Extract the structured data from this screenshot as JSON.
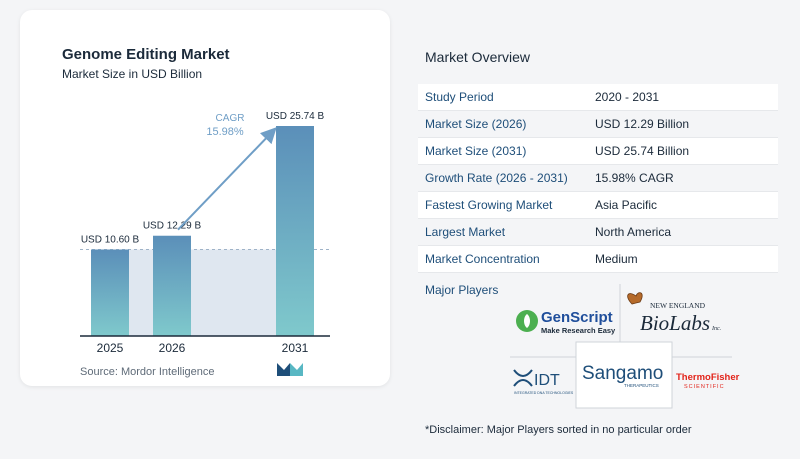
{
  "chart_data": {
    "type": "bar",
    "title": "Genome Editing Market",
    "subtitle": "Market Size in USD Billion",
    "categories": [
      "2025",
      "2026",
      "2031"
    ],
    "values": [
      10.6,
      12.29,
      25.74
    ],
    "data_labels": [
      "USD 10.60 B",
      "USD 12.29 B",
      "USD 25.74 B"
    ],
    "cagr_label": "CAGR",
    "cagr_value": "15.98%",
    "colors": {
      "bar_top": "#5b8fb9",
      "bar_bottom": "#7fc9cc",
      "band": "#dfe7f0",
      "arrow": "#6f9ec6",
      "baseline": "#1b2a3a"
    }
  },
  "source": "Source:  Mordor Intelligence",
  "overview": {
    "title": "Market Overview",
    "rows": [
      {
        "label": "Study Period",
        "value": "2020 - 2031"
      },
      {
        "label": "Market Size (2026)",
        "value": "USD 12.29 Billion"
      },
      {
        "label": "Market Size (2031)",
        "value": "USD 25.74 Billion"
      },
      {
        "label": "Growth Rate (2026 - 2031)",
        "value": "15.98% CAGR"
      },
      {
        "label": "Fastest Growing Market",
        "value": "Asia Pacific"
      },
      {
        "label": "Largest Market",
        "value": "North America"
      },
      {
        "label": "Market Concentration",
        "value": "Medium"
      }
    ]
  },
  "players": {
    "title": "Major Players",
    "genscript": {
      "name": "GenScript",
      "tagline": "Make Research Easy"
    },
    "neb": {
      "top": "NEW ENGLAND",
      "main": "BioLabs",
      "suffix": "Inc."
    },
    "idt": {
      "name": "IDT",
      "tagline": "INTEGRATED DNA TECHNOLOGIES"
    },
    "sangamo": {
      "name": "Sangamo",
      "tagline": "THERAPEUTICS"
    },
    "thermo": {
      "name": "ThermoFisher",
      "tagline": "SCIENTIFIC"
    }
  },
  "disclaimer": "*Disclaimer: Major Players sorted in no particular order"
}
